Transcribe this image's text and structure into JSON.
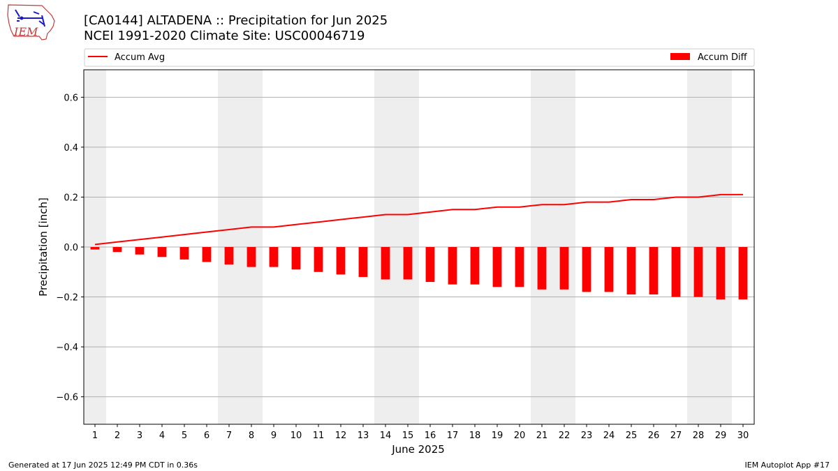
{
  "header": {
    "title_line1": "[CA0144] ALTADENA :: Precipitation for Jun 2025",
    "title_line2": "NCEI 1991-2020 Climate Site: USC00046719",
    "logo_text": "IEM"
  },
  "footer": {
    "generated": "Generated at 17 Jun 2025 12:49 PM CDT in 0.36s",
    "app": "IEM Autoplot App #17"
  },
  "chart_data": {
    "type": "bar",
    "xlabel": "June 2025",
    "ylabel": "Precipitation [inch]",
    "ylim": [
      -0.71,
      0.71
    ],
    "yticks": [
      0.6,
      0.4,
      0.2,
      0.0,
      -0.2,
      -0.4,
      -0.6
    ],
    "ytick_labels": [
      "0.6",
      "0.4",
      "0.2",
      "0.0",
      "−0.2",
      "−0.4",
      "−0.6"
    ],
    "grid": true,
    "categories": [
      "1",
      "2",
      "3",
      "4",
      "5",
      "6",
      "7",
      "8",
      "9",
      "10",
      "11",
      "12",
      "13",
      "14",
      "15",
      "16",
      "17",
      "18",
      "19",
      "20",
      "21",
      "22",
      "23",
      "24",
      "25",
      "26",
      "27",
      "28",
      "29",
      "30"
    ],
    "weekend_days": [
      1,
      7,
      8,
      14,
      15,
      21,
      22,
      28,
      29
    ],
    "legend": {
      "placement": "top",
      "line_label": "Accum Avg",
      "bar_label": "Accum Diff"
    },
    "colors": {
      "line": "#ff0000",
      "bar": "#ff0000",
      "weekend_band": "#eeeeee",
      "grid": "#b0b0b0"
    },
    "series": [
      {
        "name": "Accum Avg",
        "type": "line",
        "values": [
          0.01,
          0.02,
          0.03,
          0.04,
          0.05,
          0.06,
          0.07,
          0.08,
          0.08,
          0.09,
          0.1,
          0.11,
          0.12,
          0.13,
          0.13,
          0.14,
          0.15,
          0.15,
          0.16,
          0.16,
          0.17,
          0.17,
          0.18,
          0.18,
          0.19,
          0.19,
          0.2,
          0.2,
          0.21,
          0.21
        ]
      },
      {
        "name": "Accum Diff",
        "type": "bar",
        "values": [
          -0.01,
          -0.02,
          -0.03,
          -0.04,
          -0.05,
          -0.06,
          -0.07,
          -0.08,
          -0.08,
          -0.09,
          -0.1,
          -0.11,
          -0.12,
          -0.13,
          -0.13,
          -0.14,
          -0.15,
          -0.15,
          -0.16,
          -0.16,
          -0.17,
          -0.17,
          -0.18,
          -0.18,
          -0.19,
          -0.19,
          -0.2,
          -0.2,
          -0.21,
          -0.21
        ]
      }
    ]
  }
}
